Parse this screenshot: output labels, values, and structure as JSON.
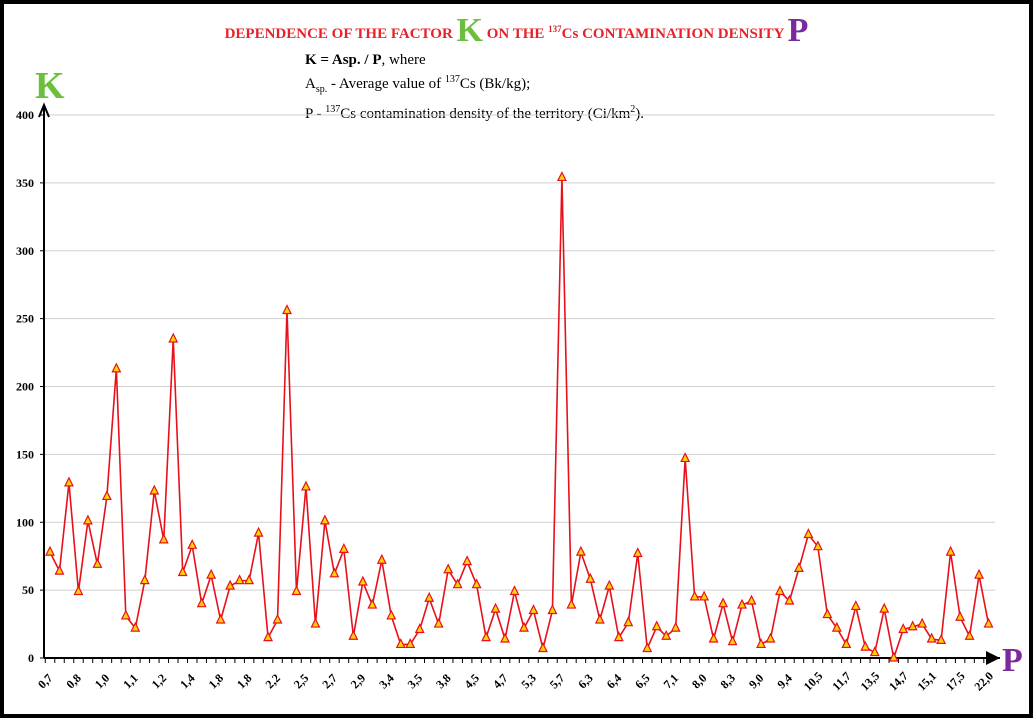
{
  "chart_data": {
    "type": "line",
    "title_parts": {
      "pre": "DEPENDENCE OF THE  FACTOR ",
      "k": "K",
      "mid": " ON THE ",
      "sup": "137",
      "post": "Cs CONTAMINATION DENSITY ",
      "p": "P"
    },
    "formula": {
      "line1_bold": "K = Asp. / P",
      "line1_rest": ", where",
      "line2_a": "A",
      "line2_sub": "sp.",
      "line2_mid": " - Average value of ",
      "line2_sup": "137",
      "line2_rest": "Cs (Bk/kg);",
      "line3_a": "P -  ",
      "line3_sup": "137",
      "line3_rest": "Cs contamination density of the territory (Ci/km",
      "line3_sup2": "2",
      "line3_end": ")."
    },
    "ylabel": "K",
    "xlabel": "P",
    "ylim": [
      0,
      400
    ],
    "yticks": [
      0,
      50,
      100,
      150,
      200,
      250,
      300,
      350,
      400
    ],
    "grid": true,
    "x_tick_labels": [
      "0,7",
      "0,8",
      "1,0",
      "1,1",
      "1,2",
      "1,4",
      "1,8",
      "1,8",
      "2,2",
      "2,5",
      "2,7",
      "2,9",
      "3,4",
      "3,5",
      "3,8",
      "4,5",
      "4,7",
      "5,3",
      "5,7",
      "6,3",
      "6,4",
      "6,5",
      "7,1",
      "8,0",
      "8,3",
      "9,0",
      "9,4",
      "10,5",
      "11,7",
      "13,5",
      "14,7",
      "15,1",
      "17,5",
      "22,0"
    ],
    "series": [
      {
        "name": "K",
        "color": "#e8101a",
        "marker_color": "#ffd400",
        "values": [
          78,
          64,
          129,
          49,
          101,
          69,
          119,
          213,
          31,
          22,
          57,
          123,
          87,
          235,
          63,
          83,
          40,
          61,
          28,
          53,
          57,
          57,
          92,
          15,
          28,
          256,
          49,
          126,
          25,
          101,
          62,
          80,
          16,
          56,
          39,
          72,
          31,
          10,
          10,
          21,
          44,
          25,
          65,
          54,
          71,
          54,
          15,
          36,
          14,
          49,
          22,
          35,
          7,
          35,
          354,
          39,
          78,
          58,
          28,
          53,
          15,
          26,
          77,
          7,
          23,
          16,
          22,
          147,
          45,
          45,
          14,
          40,
          12,
          39,
          42,
          10,
          14,
          49,
          42,
          66,
          91,
          82,
          32,
          22,
          10,
          38,
          8,
          4,
          36,
          0,
          21,
          23,
          25,
          14,
          13,
          78,
          30,
          16,
          61,
          25
        ]
      }
    ]
  }
}
